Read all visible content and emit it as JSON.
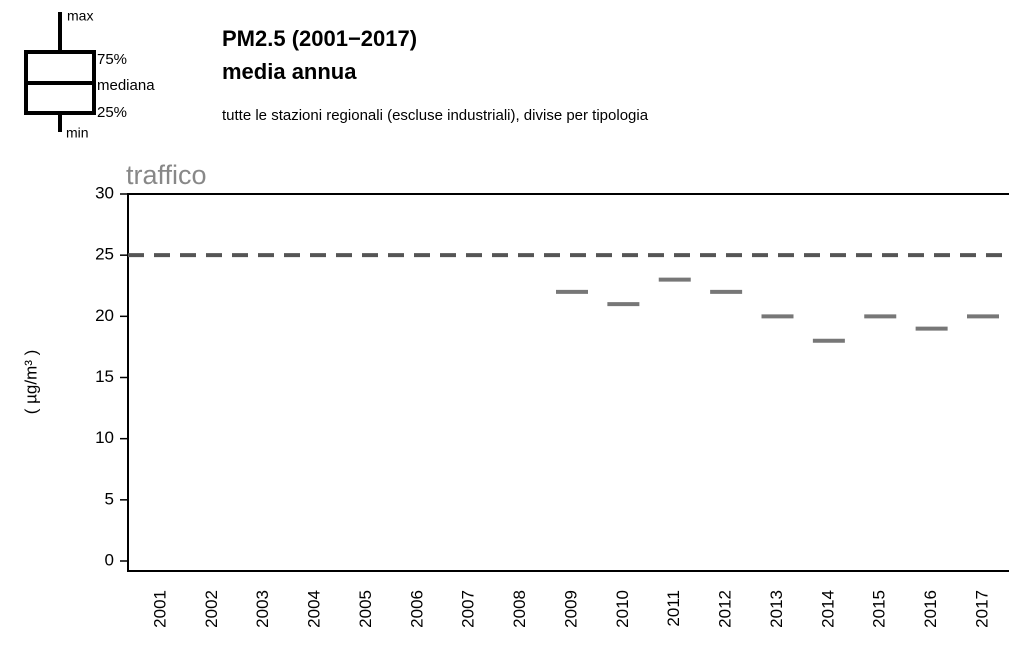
{
  "chart_data": {
    "type": "box",
    "title": "PM2.5 (2001−2017)",
    "subtitle": "media annua",
    "note": "tutte le stazioni regionali (escluse industriali), divise per tipologia",
    "panel_label": "traffico",
    "y_label": "( µg/m³ )",
    "legend_labels": [
      "max",
      "75%",
      "mediana",
      "25%",
      "min"
    ],
    "categories": [
      "2001",
      "2002",
      "2003",
      "2004",
      "2005",
      "2006",
      "2007",
      "2008",
      "2009",
      "2010",
      "2011",
      "2012",
      "2013",
      "2014",
      "2015",
      "2016",
      "2017"
    ],
    "values": [
      null,
      null,
      null,
      null,
      null,
      null,
      null,
      null,
      22,
      21,
      23,
      22,
      20,
      18,
      20,
      19,
      20
    ],
    "color": "#777777",
    "reference_line": 25,
    "reference_color": "#555555",
    "ylim": [
      0,
      30
    ],
    "yticks": [
      0,
      5,
      10,
      15,
      20,
      25,
      30
    ]
  }
}
